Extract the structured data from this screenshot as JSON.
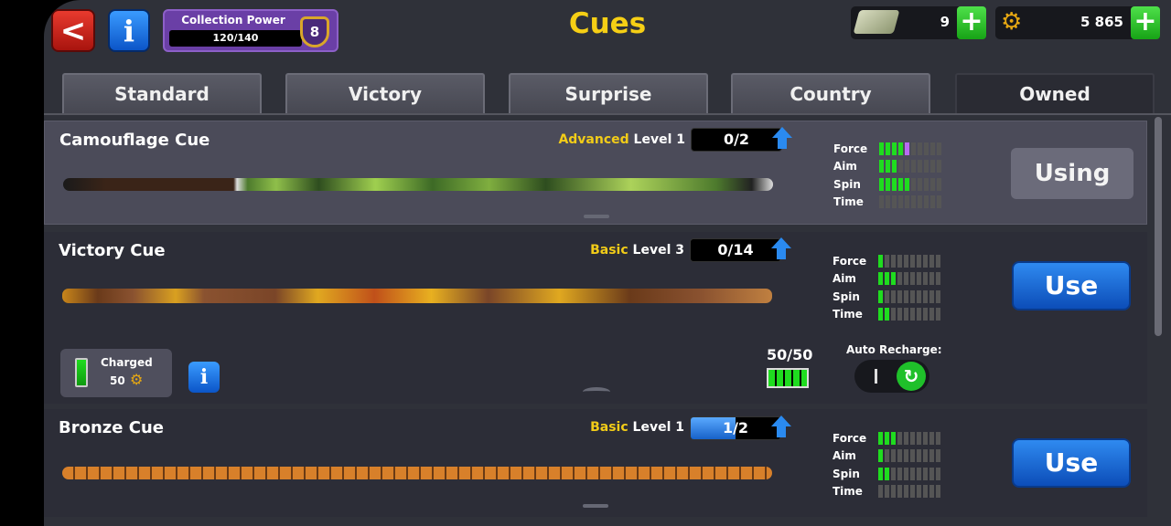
{
  "header": {
    "title": "Cues",
    "collection_power": {
      "label": "Collection Power",
      "progress": "120/140",
      "level": "8"
    },
    "cash": {
      "value": "9",
      "icon": "cash-icon"
    },
    "coins": {
      "value": "5 865",
      "icon": "coin-gear-icon"
    }
  },
  "tabs": [
    {
      "label": "Standard"
    },
    {
      "label": "Victory"
    },
    {
      "label": "Surprise"
    },
    {
      "label": "Country"
    },
    {
      "label": "Owned",
      "active": true
    }
  ],
  "cues": [
    {
      "name": "Camouflage Cue",
      "tier": "Advanced",
      "level": "Level 1",
      "pieces": "0/2",
      "progress": 0,
      "stats": {
        "Force": 4,
        "Aim": 3,
        "Spin": 5,
        "Time": 0
      },
      "force_bonus": 1,
      "button": "Using",
      "stat_labels": [
        "Force",
        "Aim",
        "Spin",
        "Time"
      ]
    },
    {
      "name": "Victory Cue",
      "tier": "Basic",
      "level": "Level 3",
      "pieces": "0/14",
      "progress": 0,
      "stats": {
        "Force": 1,
        "Aim": 3,
        "Spin": 1,
        "Time": 2
      },
      "button": "Use",
      "stat_labels": [
        "Force",
        "Aim",
        "Spin",
        "Time"
      ],
      "charge": {
        "label": "Charged",
        "cost": "50",
        "count": "50/50",
        "auto_recharge_label": "Auto Recharge:",
        "auto_recharge": true
      }
    },
    {
      "name": "Bronze Cue",
      "tier": "Basic",
      "level": "Level 1",
      "pieces": "1/2",
      "progress": 0.5,
      "stats": {
        "Force": 3,
        "Aim": 1,
        "Spin": 2,
        "Time": 0
      },
      "button": "Use",
      "stat_labels": [
        "Force",
        "Aim",
        "Spin",
        "Time"
      ]
    }
  ],
  "colors": {
    "accent_yellow": "#f6cf15",
    "use_blue": "#1f6fe0",
    "stat_green": "#1fdc1f",
    "bonus_purple": "#b86af2"
  }
}
